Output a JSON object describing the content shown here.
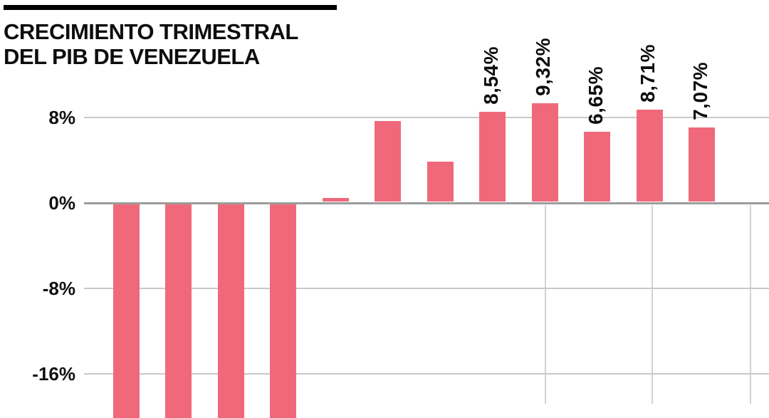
{
  "header": {
    "title_line1": "CRECIMIENTO TRIMESTRAL",
    "title_line2": "DEL PIB DE VENEZUELA"
  },
  "chart_data": {
    "type": "bar",
    "title": "CRECIMIENTO TRIMESTRAL DEL PIB DE VENEZUELA",
    "ylabel": "",
    "xlabel": "",
    "grid": true,
    "legend": "none",
    "bar_color": "#f0697b",
    "y_ticks": [
      {
        "label": "8%",
        "value": 8
      },
      {
        "label": "0%",
        "value": 0
      },
      {
        "label": "-8%",
        "value": -8
      },
      {
        "label": "-16%",
        "value": -16
      }
    ],
    "ylim_visible": [
      -18.8,
      10
    ],
    "clipped_negative_bars": 4,
    "values": [
      -20,
      -20,
      -20,
      -20,
      0.5,
      7.7,
      3.9,
      8.54,
      9.32,
      6.65,
      8.71,
      7.07
    ],
    "data_labels": [
      "",
      "",
      "",
      "",
      "",
      "",
      "",
      "8,54%",
      "9,32%",
      "6,65%",
      "8,71%",
      "7,07%"
    ]
  }
}
